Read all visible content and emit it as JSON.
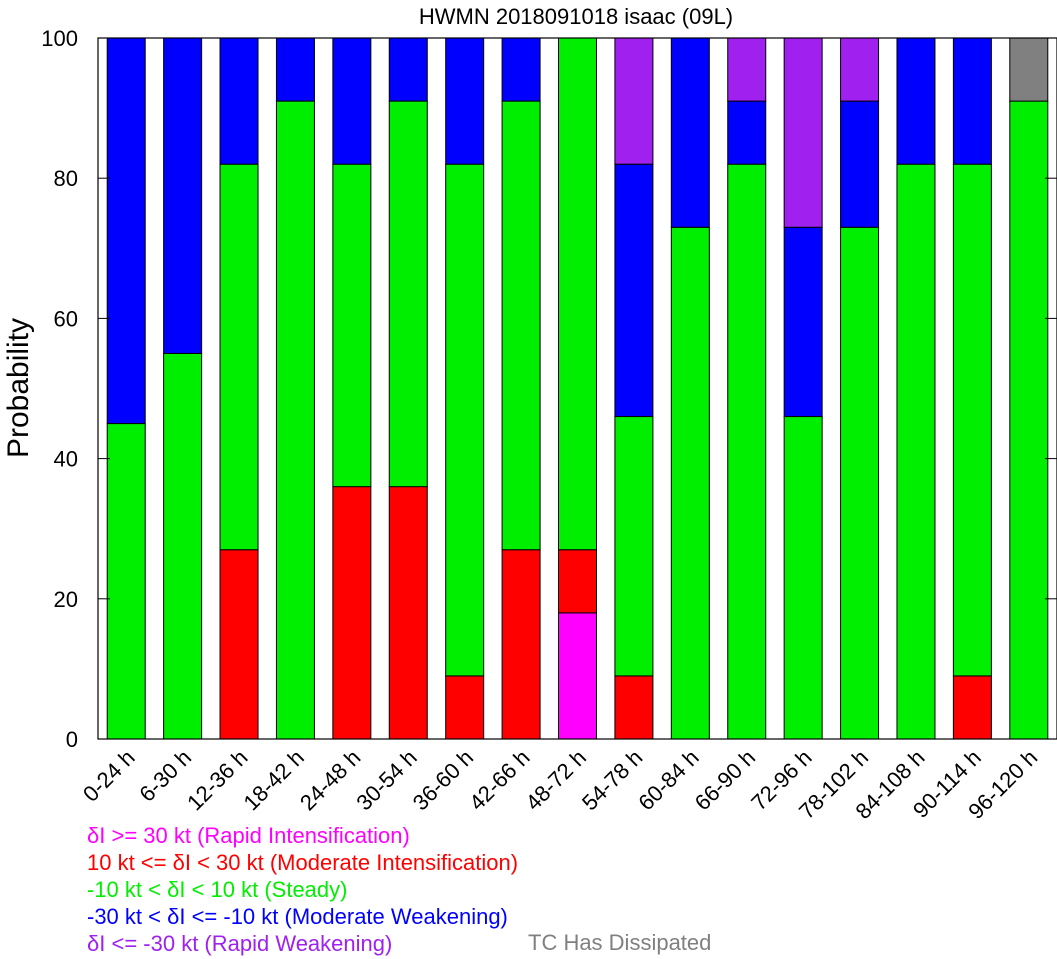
{
  "colors": {
    "rapid_intensification": "#ff00ff",
    "moderate_intensification": "#ff0000",
    "steady": "#00ee00",
    "moderate_weakening": "#0000ff",
    "rapid_weakening": "#a020f0",
    "dissipated": "#808080"
  },
  "legend": {
    "lines": [
      {
        "text": "δI >= 30 kt (Rapid Intensification)",
        "color": "#ff00ff"
      },
      {
        "text": "10 kt <= δI < 30 kt (Moderate Intensification)",
        "color": "#ff0000"
      },
      {
        "text": "-10 kt < δI < 10 kt (Steady)",
        "color": "#00ee00"
      },
      {
        "text": "-30 kt < δI <= -10 kt (Moderate Weakening)",
        "color": "#0000ff"
      },
      {
        "text": "δI <= -30 kt (Rapid Weakening)",
        "color": "#a020f0"
      }
    ],
    "dissipated": {
      "text": "TC Has Dissipated",
      "color": "#808080"
    }
  },
  "chart_data": {
    "type": "bar",
    "stacked": true,
    "title": "HWMN 2018091018 isaac (09L)",
    "xlabel": "",
    "ylabel": "Probability",
    "ylim": [
      0,
      100
    ],
    "yticks": [
      0,
      20,
      40,
      60,
      80,
      100
    ],
    "categories": [
      "0-24 h",
      "6-30 h",
      "12-36 h",
      "18-42 h",
      "24-48 h",
      "30-54 h",
      "36-60 h",
      "42-66 h",
      "48-72 h",
      "54-78 h",
      "60-84 h",
      "66-90 h",
      "72-96 h",
      "78-102 h",
      "84-108 h",
      "90-114 h",
      "96-120 h"
    ],
    "series": [
      {
        "key": "rapid_intensification",
        "color": "#ff00ff",
        "values": [
          0,
          0,
          0,
          0,
          0,
          0,
          0,
          0,
          18,
          0,
          0,
          0,
          0,
          0,
          0,
          0,
          0
        ]
      },
      {
        "key": "moderate_intensification",
        "color": "#ff0000",
        "values": [
          0,
          0,
          27,
          0,
          36,
          36,
          9,
          27,
          9,
          9,
          0,
          0,
          0,
          0,
          0,
          9,
          0
        ]
      },
      {
        "key": "steady",
        "color": "#00ee00",
        "values": [
          45,
          55,
          55,
          91,
          46,
          55,
          73,
          64,
          73,
          37,
          73,
          82,
          46,
          73,
          82,
          73,
          91
        ]
      },
      {
        "key": "moderate_weakening",
        "color": "#0000ff",
        "values": [
          55,
          45,
          18,
          9,
          18,
          9,
          18,
          9,
          0,
          36,
          27,
          9,
          27,
          18,
          18,
          18,
          0
        ]
      },
      {
        "key": "rapid_weakening",
        "color": "#a020f0",
        "values": [
          0,
          0,
          0,
          0,
          0,
          0,
          0,
          0,
          0,
          18,
          0,
          9,
          27,
          9,
          0,
          0,
          0
        ]
      },
      {
        "key": "dissipated",
        "color": "#808080",
        "values": [
          0,
          0,
          0,
          0,
          0,
          0,
          0,
          0,
          0,
          0,
          0,
          0,
          0,
          0,
          0,
          0,
          9
        ]
      }
    ]
  }
}
